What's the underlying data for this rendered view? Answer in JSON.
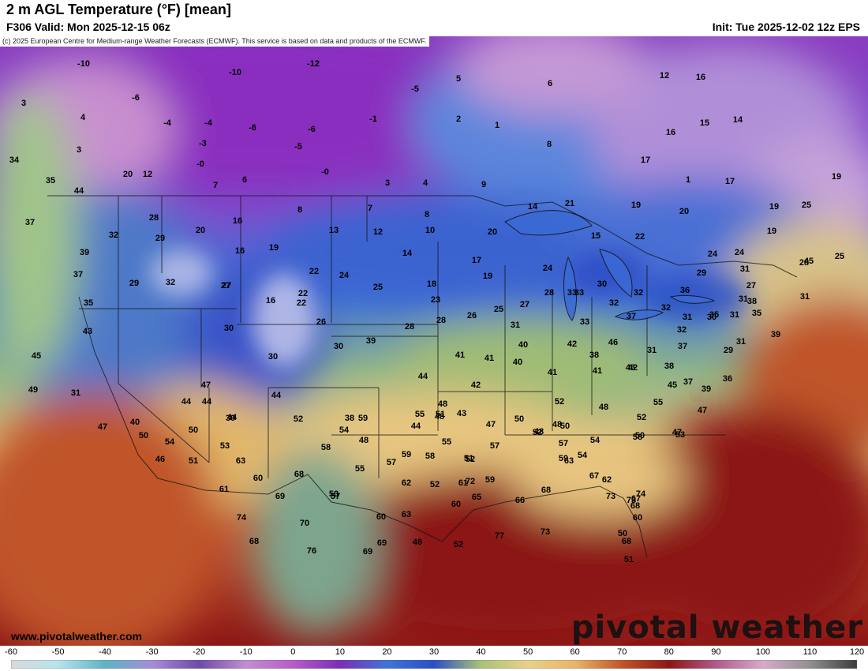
{
  "header": {
    "title": "2 m AGL Temperature (°F) [mean]",
    "valid": "F306 Valid: Mon 2025-12-15 06z",
    "init": "Init: Tue 2025-12-02 12z EPS"
  },
  "map": {
    "credit": "(c) 2025 European Centre for Medium-range Weather Forecasts (ECMWF). This service is based on data and products of the ECMWF.",
    "website": "www.pivotalweather.com",
    "logo": "pivotal weather",
    "colors": {
      "cold": "#7a2fb5",
      "cool": "#3f74d8",
      "mild": "#a9c27a",
      "warm": "#e9b56a",
      "hot": "#8c1616",
      "ocean_warm": "#b23a1c"
    },
    "labels": [
      {
        "t": "-10",
        "v": -10
      },
      {
        "t": "-12",
        "v": -12
      },
      {
        "t": "-10",
        "v": -10
      },
      {
        "t": "5",
        "v": 5
      },
      {
        "t": "-5",
        "v": -5
      },
      {
        "t": "6",
        "v": 6
      },
      {
        "t": "3",
        "v": 3
      },
      {
        "t": "4",
        "v": 4
      },
      {
        "t": "-6",
        "v": -6
      },
      {
        "t": "-4",
        "v": -4
      },
      {
        "t": "-4",
        "v": -4
      },
      {
        "t": "-6",
        "v": -6
      },
      {
        "t": "-6",
        "v": -6
      },
      {
        "t": "-1",
        "v": -1
      },
      {
        "t": "2",
        "v": 2
      },
      {
        "t": "1",
        "v": 1
      },
      {
        "t": "12",
        "v": 12
      },
      {
        "t": "16",
        "v": 16
      },
      {
        "t": "3",
        "v": 3
      },
      {
        "t": "-3",
        "v": -3
      },
      {
        "t": "-5",
        "v": -5
      },
      {
        "t": "8",
        "v": 8
      },
      {
        "t": "15",
        "v": 15
      },
      {
        "t": "14",
        "v": 14
      },
      {
        "t": "34",
        "v": 34
      },
      {
        "t": "-0",
        "v": 0
      },
      {
        "t": "-0",
        "v": 0
      },
      {
        "t": "16",
        "v": 16
      },
      {
        "t": "17",
        "v": 17
      },
      {
        "t": "20",
        "v": 20
      },
      {
        "t": "12",
        "v": 12
      },
      {
        "t": "7",
        "v": 7
      },
      {
        "t": "6",
        "v": 6
      },
      {
        "t": "3",
        "v": 3
      },
      {
        "t": "4",
        "v": 4
      },
      {
        "t": "9",
        "v": 9
      },
      {
        "t": "1",
        "v": 1
      },
      {
        "t": "17",
        "v": 17
      },
      {
        "t": "19",
        "v": 19
      },
      {
        "t": "35",
        "v": 35
      },
      {
        "t": "44",
        "v": 44
      },
      {
        "t": "21",
        "v": 21
      },
      {
        "t": "19",
        "v": 19
      },
      {
        "t": "20",
        "v": 20
      },
      {
        "t": "19",
        "v": 19
      },
      {
        "t": "25",
        "v": 25
      },
      {
        "t": "37",
        "v": 37
      },
      {
        "t": "28",
        "v": 28
      },
      {
        "t": "8",
        "v": 8
      },
      {
        "t": "7",
        "v": 7
      },
      {
        "t": "8",
        "v": 8
      },
      {
        "t": "14",
        "v": 14
      },
      {
        "t": "16",
        "v": 16
      },
      {
        "t": "20",
        "v": 20
      },
      {
        "t": "13",
        "v": 13
      },
      {
        "t": "12",
        "v": 12
      },
      {
        "t": "10",
        "v": 10
      },
      {
        "t": "20",
        "v": 20
      },
      {
        "t": "15",
        "v": 15
      },
      {
        "t": "22",
        "v": 22
      },
      {
        "t": "19",
        "v": 19
      },
      {
        "t": "32",
        "v": 32
      },
      {
        "t": "29",
        "v": 29
      },
      {
        "t": "16",
        "v": 16
      },
      {
        "t": "19",
        "v": 19
      },
      {
        "t": "14",
        "v": 14
      },
      {
        "t": "17",
        "v": 17
      },
      {
        "t": "24",
        "v": 24
      },
      {
        "t": "24",
        "v": 24
      },
      {
        "t": "25",
        "v": 25
      },
      {
        "t": "39",
        "v": 39
      },
      {
        "t": "22",
        "v": 22
      },
      {
        "t": "24",
        "v": 24
      },
      {
        "t": "18",
        "v": 18
      },
      {
        "t": "19",
        "v": 19
      },
      {
        "t": "24",
        "v": 24
      },
      {
        "t": "31",
        "v": 31
      },
      {
        "t": "29",
        "v": 29
      },
      {
        "t": "27",
        "v": 27
      },
      {
        "t": "37",
        "v": 37
      },
      {
        "t": "29",
        "v": 29
      },
      {
        "t": "32",
        "v": 32
      },
      {
        "t": "27",
        "v": 27
      },
      {
        "t": "22",
        "v": 22
      },
      {
        "t": "25",
        "v": 25
      },
      {
        "t": "30",
        "v": 30
      },
      {
        "t": "33",
        "v": 33
      },
      {
        "t": "32",
        "v": 32
      },
      {
        "t": "36",
        "v": 36
      },
      {
        "t": "28",
        "v": 28
      },
      {
        "t": "35",
        "v": 35
      },
      {
        "t": "31",
        "v": 31
      },
      {
        "t": "16",
        "v": 16
      },
      {
        "t": "22",
        "v": 22
      },
      {
        "t": "23",
        "v": 23
      },
      {
        "t": "25",
        "v": 25
      },
      {
        "t": "27",
        "v": 27
      },
      {
        "t": "28",
        "v": 28
      },
      {
        "t": "33",
        "v": 33
      },
      {
        "t": "32",
        "v": 32
      },
      {
        "t": "38",
        "v": 38
      },
      {
        "t": "43",
        "v": 43
      },
      {
        "t": "30",
        "v": 30
      },
      {
        "t": "26",
        "v": 26
      },
      {
        "t": "28",
        "v": 28
      },
      {
        "t": "28",
        "v": 28
      },
      {
        "t": "26",
        "v": 26
      },
      {
        "t": "31",
        "v": 31
      },
      {
        "t": "32",
        "v": 32
      },
      {
        "t": "33",
        "v": 33
      },
      {
        "t": "37",
        "v": 37
      },
      {
        "t": "32",
        "v": 32
      },
      {
        "t": "31",
        "v": 31
      },
      {
        "t": "30",
        "v": 30
      },
      {
        "t": "31",
        "v": 31
      },
      {
        "t": "35",
        "v": 35
      },
      {
        "t": "31",
        "v": 31
      },
      {
        "t": "27",
        "v": 27
      },
      {
        "t": "31",
        "v": 31
      },
      {
        "t": "29",
        "v": 29
      },
      {
        "t": "37",
        "v": 37
      },
      {
        "t": "39",
        "v": 39
      },
      {
        "t": "35",
        "v": 35
      },
      {
        "t": "30",
        "v": 30
      },
      {
        "t": "41",
        "v": 41
      },
      {
        "t": "45",
        "v": 45
      },
      {
        "t": "30",
        "v": 30
      },
      {
        "t": "36",
        "v": 36
      },
      {
        "t": "39",
        "v": 39
      },
      {
        "t": "39",
        "v": 39
      },
      {
        "t": "41",
        "v": 41
      },
      {
        "t": "40",
        "v": 40
      },
      {
        "t": "42",
        "v": 42
      },
      {
        "t": "38",
        "v": 38
      },
      {
        "t": "41",
        "v": 41
      },
      {
        "t": "46",
        "v": 46
      },
      {
        "t": "31",
        "v": 31
      },
      {
        "t": "37",
        "v": 37
      },
      {
        "t": "40",
        "v": 40
      },
      {
        "t": "44",
        "v": 44
      },
      {
        "t": "46",
        "v": 46
      },
      {
        "t": "44",
        "v": 44
      },
      {
        "t": "42",
        "v": 42
      },
      {
        "t": "41",
        "v": 41
      },
      {
        "t": "42",
        "v": 42
      },
      {
        "t": "38",
        "v": 38
      },
      {
        "t": "45",
        "v": 45
      },
      {
        "t": "49",
        "v": 49
      },
      {
        "t": "45",
        "v": 45
      },
      {
        "t": "47",
        "v": 47
      },
      {
        "t": "31",
        "v": 31
      },
      {
        "t": "47",
        "v": 47
      },
      {
        "t": "40",
        "v": 40
      },
      {
        "t": "44",
        "v": 44
      },
      {
        "t": "44",
        "v": 44
      },
      {
        "t": "30",
        "v": 30
      },
      {
        "t": "38",
        "v": 38
      },
      {
        "t": "44",
        "v": 44
      },
      {
        "t": "48",
        "v": 48
      },
      {
        "t": "48",
        "v": 48
      },
      {
        "t": "51",
        "v": 51
      },
      {
        "t": "52",
        "v": 52
      },
      {
        "t": "48",
        "v": 48
      },
      {
        "t": "47",
        "v": 47
      },
      {
        "t": "44",
        "v": 44
      },
      {
        "t": "52",
        "v": 52
      },
      {
        "t": "59",
        "v": 59
      },
      {
        "t": "55",
        "v": 55
      },
      {
        "t": "43",
        "v": 43
      },
      {
        "t": "50",
        "v": 50
      },
      {
        "t": "47",
        "v": 47
      },
      {
        "t": "48",
        "v": 48
      },
      {
        "t": "48",
        "v": 48
      },
      {
        "t": "52",
        "v": 52
      },
      {
        "t": "54",
        "v": 54
      },
      {
        "t": "50",
        "v": 50
      },
      {
        "t": "54",
        "v": 54
      },
      {
        "t": "52",
        "v": 52
      },
      {
        "t": "50",
        "v": 50
      },
      {
        "t": "54",
        "v": 54
      },
      {
        "t": "58",
        "v": 58
      },
      {
        "t": "55",
        "v": 55
      },
      {
        "t": "47",
        "v": 47
      },
      {
        "t": "48",
        "v": 48
      },
      {
        "t": "55",
        "v": 55
      },
      {
        "t": "57",
        "v": 57
      },
      {
        "t": "57",
        "v": 57
      },
      {
        "t": "54",
        "v": 54
      },
      {
        "t": "50",
        "v": 50
      },
      {
        "t": "53",
        "v": 53
      },
      {
        "t": "50",
        "v": 50
      },
      {
        "t": "51",
        "v": 51
      },
      {
        "t": "53",
        "v": 53
      },
      {
        "t": "58",
        "v": 58
      },
      {
        "t": "59",
        "v": 59
      },
      {
        "t": "58",
        "v": 58
      },
      {
        "t": "52",
        "v": 52
      },
      {
        "t": "59",
        "v": 59
      },
      {
        "t": "46",
        "v": 46
      },
      {
        "t": "51",
        "v": 51
      },
      {
        "t": "63",
        "v": 63
      },
      {
        "t": "60",
        "v": 60
      },
      {
        "t": "68",
        "v": 68
      },
      {
        "t": "57",
        "v": 57
      },
      {
        "t": "55",
        "v": 55
      },
      {
        "t": "57",
        "v": 57
      },
      {
        "t": "62",
        "v": 62
      },
      {
        "t": "52",
        "v": 52
      },
      {
        "t": "61",
        "v": 61
      },
      {
        "t": "59",
        "v": 59
      },
      {
        "t": "63",
        "v": 63
      },
      {
        "t": "62",
        "v": 62
      },
      {
        "t": "67",
        "v": 67
      },
      {
        "t": "67",
        "v": 67
      },
      {
        "t": "74",
        "v": 74
      },
      {
        "t": "73",
        "v": 73
      },
      {
        "t": "72",
        "v": 72
      },
      {
        "t": "61",
        "v": 61
      },
      {
        "t": "69",
        "v": 69
      },
      {
        "t": "50",
        "v": 50
      },
      {
        "t": "60",
        "v": 60
      },
      {
        "t": "65",
        "v": 65
      },
      {
        "t": "66",
        "v": 66
      },
      {
        "t": "68",
        "v": 68
      },
      {
        "t": "73",
        "v": 73
      },
      {
        "t": "60",
        "v": 60
      },
      {
        "t": "60",
        "v": 60
      },
      {
        "t": "70",
        "v": 70
      },
      {
        "t": "63",
        "v": 63
      },
      {
        "t": "68",
        "v": 68
      },
      {
        "t": "68",
        "v": 68
      },
      {
        "t": "74",
        "v": 74
      },
      {
        "t": "69",
        "v": 69
      },
      {
        "t": "48",
        "v": 48
      },
      {
        "t": "52",
        "v": 52
      },
      {
        "t": "77",
        "v": 77
      },
      {
        "t": "73",
        "v": 73
      },
      {
        "t": "50",
        "v": 50
      },
      {
        "t": "68",
        "v": 68
      },
      {
        "t": "76",
        "v": 76
      },
      {
        "t": "69",
        "v": 69
      },
      {
        "t": "51",
        "v": 51
      }
    ]
  },
  "colorbar": {
    "ticks": [
      "-60",
      "-50",
      "-40",
      "-30",
      "-20",
      "-10",
      "0",
      "10",
      "20",
      "30",
      "40",
      "50",
      "60",
      "70",
      "80",
      "90",
      "100",
      "110",
      "120"
    ],
    "min": -60,
    "max": 120,
    "stops": [
      {
        "v": -60,
        "c": "#d9d9d9"
      },
      {
        "v": -50,
        "c": "#b7e3ee"
      },
      {
        "v": -40,
        "c": "#5fb3c4"
      },
      {
        "v": -30,
        "c": "#a58ed6"
      },
      {
        "v": -20,
        "c": "#6d4aa8"
      },
      {
        "v": -10,
        "c": "#c08fcf"
      },
      {
        "v": 0,
        "c": "#b75cc9"
      },
      {
        "v": 10,
        "c": "#7a2fb5"
      },
      {
        "v": 20,
        "c": "#3f74d8"
      },
      {
        "v": 30,
        "c": "#2c4ec4"
      },
      {
        "v": 40,
        "c": "#a9c27a"
      },
      {
        "v": 50,
        "c": "#e9d08a"
      },
      {
        "v": 60,
        "c": "#e9b56a"
      },
      {
        "v": 70,
        "c": "#c0552a"
      },
      {
        "v": 80,
        "c": "#8c1616"
      },
      {
        "v": 90,
        "c": "#b05b8a"
      },
      {
        "v": 100,
        "c": "#d7aac9"
      },
      {
        "v": 110,
        "c": "#909090"
      },
      {
        "v": 120,
        "c": "#3c3c3c"
      }
    ]
  }
}
